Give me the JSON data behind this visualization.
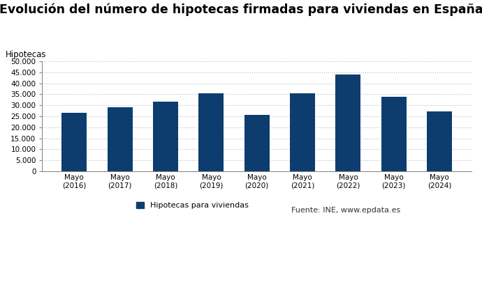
{
  "title": "Evolución del número de hipotecas firmadas para viviendas en España",
  "ylabel": "Hipotecas",
  "categories": [
    "Mayo\n(2016)",
    "Mayo\n(2017)",
    "Mayo\n(2018)",
    "Mayo\n(2019)",
    "Mayo\n(2020)",
    "Mayo\n(2021)",
    "Mayo\n(2022)",
    "Mayo\n(2023)",
    "Mayo\n(2024)"
  ],
  "values": [
    26500,
    29000,
    31500,
    35300,
    25700,
    35500,
    44000,
    33700,
    27300
  ],
  "bar_color": "#0d3d6e",
  "ylim": [
    0,
    50000
  ],
  "yticks": [
    0,
    5000,
    10000,
    15000,
    20000,
    25000,
    30000,
    35000,
    40000,
    45000,
    50000
  ],
  "legend_label": "Hipotecas para viviendas",
  "source_text": "Fuente: INE, www.epdata.es",
  "title_fontsize": 12.5,
  "ylabel_fontsize": 8.5,
  "tick_fontsize": 7.5,
  "legend_fontsize": 8,
  "background_color": "#ffffff",
  "grid_color": "#bbbbbb",
  "spine_color": "#888888"
}
